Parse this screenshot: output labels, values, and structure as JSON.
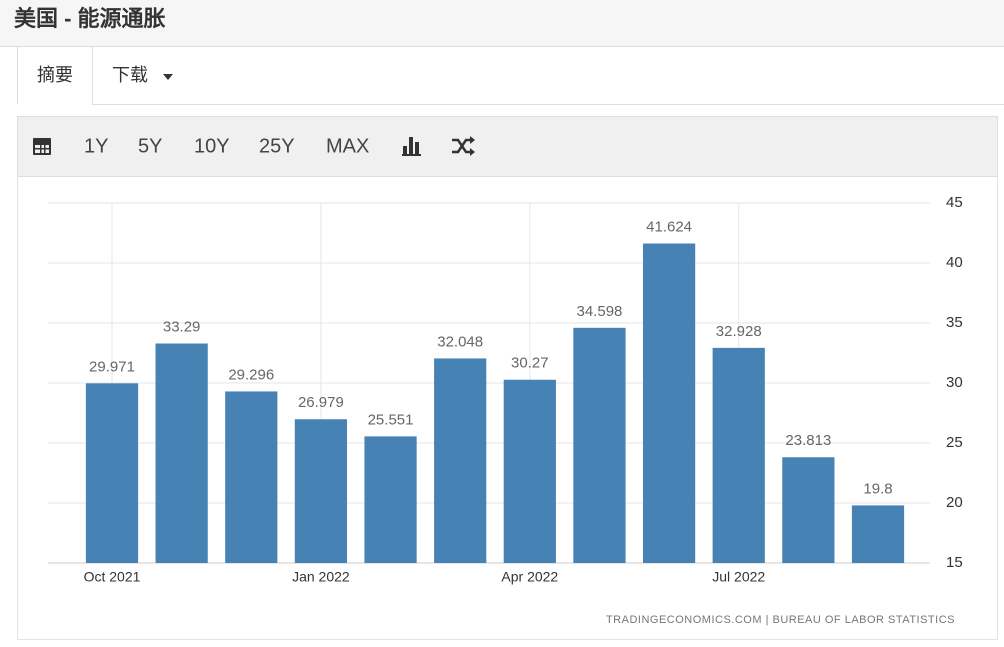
{
  "header": {
    "title": "美国 - 能源通胀"
  },
  "tabs": [
    "摘要",
    "下载"
  ],
  "toolbar": [
    "1Y",
    "5Y",
    "10Y",
    "25Y",
    "MAX"
  ],
  "chart_data": {
    "type": "bar",
    "categories": [
      "Oct 2021",
      null,
      null,
      "Jan 2022",
      null,
      null,
      "Apr 2022",
      null,
      null,
      "Jul 2022",
      null,
      null
    ],
    "values": [
      29.971,
      33.29,
      29.296,
      26.979,
      25.551,
      32.048,
      30.27,
      34.598,
      41.624,
      32.928,
      23.813,
      19.8
    ],
    "color": "#4682b4",
    "ylim": [
      15,
      45
    ],
    "yticks": [
      15,
      20,
      25,
      30,
      35,
      40,
      45
    ],
    "grid": true,
    "source": "TRADINGECONOMICS.COM | BUREAU OF LABOR STATISTICS"
  }
}
